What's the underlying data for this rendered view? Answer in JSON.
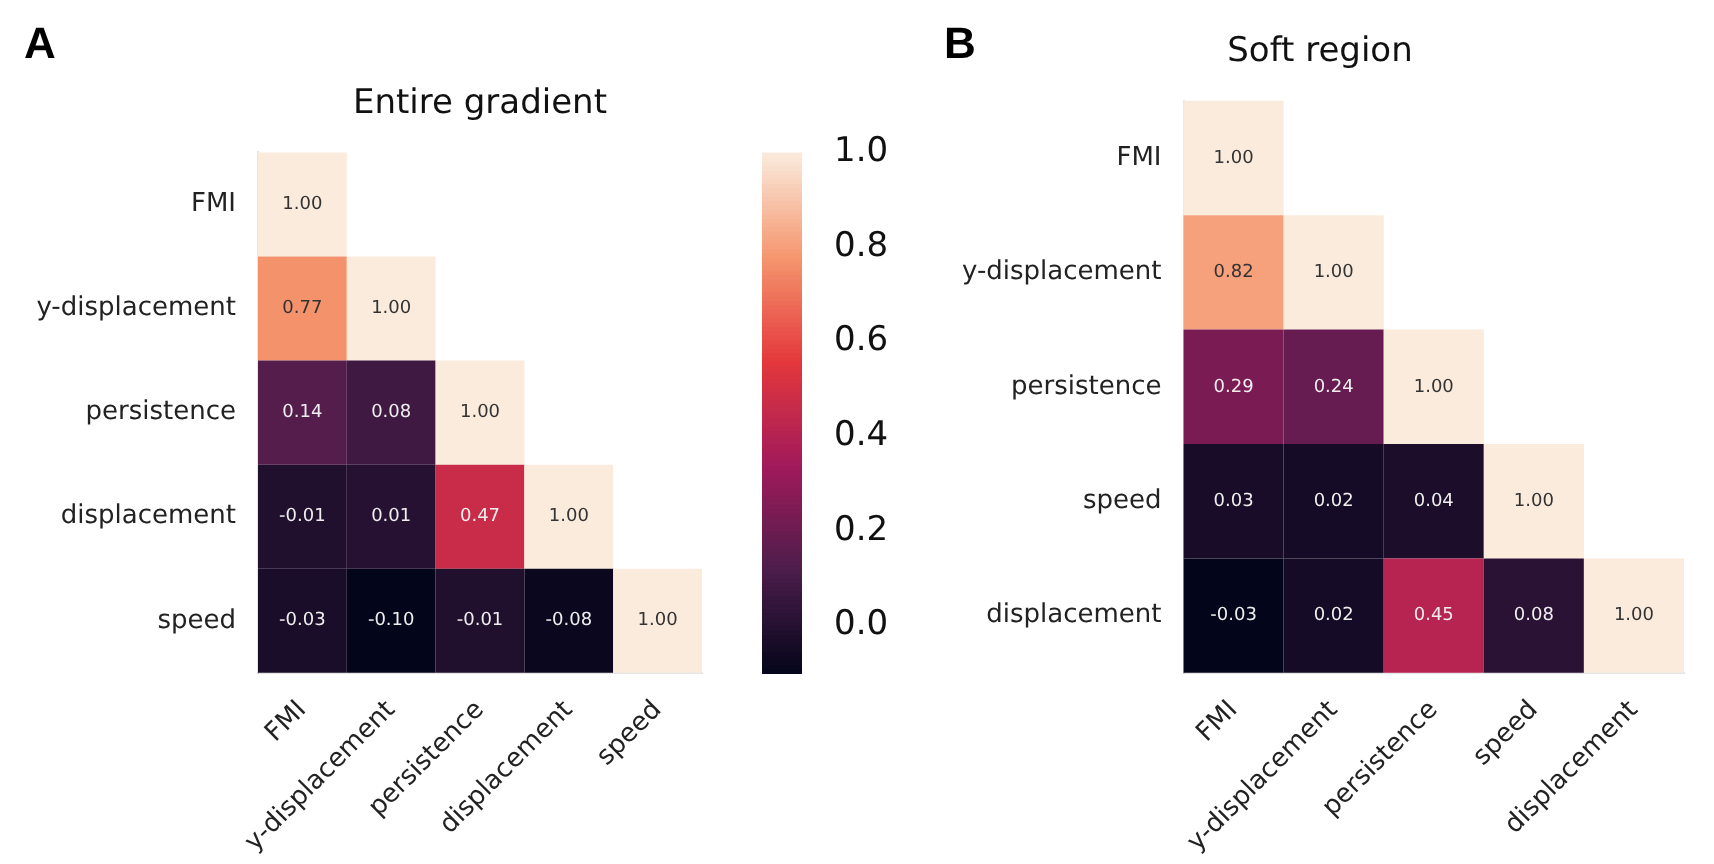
{
  "chart_data": [
    {
      "type": "heatmap",
      "title": "Entire gradient",
      "annotations": [
        "A"
      ],
      "categories": [
        "FMI",
        "y-displacement",
        "persistence",
        "displacement",
        "speed"
      ],
      "y_categories": [
        "FMI",
        "y-displacement",
        "persistence",
        "displacement",
        "speed"
      ],
      "cells": [
        [
          1.0,
          null,
          null,
          null,
          null
        ],
        [
          0.77,
          1.0,
          null,
          null,
          null
        ],
        [
          0.14,
          0.08,
          1.0,
          null,
          null
        ],
        [
          -0.01,
          0.01,
          0.47,
          1.0,
          null
        ],
        [
          -0.03,
          -0.1,
          -0.01,
          -0.08,
          1.0
        ]
      ],
      "cell_labels": [
        [
          "1.00",
          null,
          null,
          null,
          null
        ],
        [
          "0.77",
          "1.00",
          null,
          null,
          null
        ],
        [
          "0.14",
          "0.08",
          "1.00",
          null,
          null
        ],
        [
          "-0.01",
          "0.01",
          "0.47",
          "1.00",
          null
        ],
        [
          "-0.03",
          "-0.10",
          "-0.01",
          "-0.08",
          "1.00"
        ]
      ],
      "clim": [
        -0.1,
        1.0
      ],
      "cticks": [
        {
          "value": 0,
          "label": "0.0"
        },
        {
          "value": 0.2,
          "label": "0.2"
        },
        {
          "value": 0.4,
          "label": "0.4"
        },
        {
          "value": 0.6,
          "label": "0.6"
        },
        {
          "value": 0.8,
          "label": "0.8"
        },
        {
          "value": 1.0,
          "label": "1.0"
        }
      ]
    },
    {
      "type": "heatmap",
      "title": "Soft region",
      "annotations": [
        "B"
      ],
      "categories": [
        "FMI",
        "y-displacement",
        "persistence",
        "speed",
        "displacement"
      ],
      "y_categories": [
        "FMI",
        "y-displacement",
        "persistence",
        "speed",
        "displacement"
      ],
      "cells": [
        [
          1.0,
          null,
          null,
          null,
          null
        ],
        [
          0.82,
          1.0,
          null,
          null,
          null
        ],
        [
          0.29,
          0.24,
          1.0,
          null,
          null
        ],
        [
          0.03,
          0.02,
          0.04,
          1.0,
          null
        ],
        [
          -0.03,
          0.02,
          0.45,
          0.08,
          1.0
        ]
      ],
      "cell_labels": [
        [
          "1.00",
          null,
          null,
          null,
          null
        ],
        [
          "0.82",
          "1.00",
          null,
          null,
          null
        ],
        [
          "0.29",
          "0.24",
          "1.00",
          null,
          null
        ],
        [
          "0.03",
          "0.02",
          "0.04",
          "1.00",
          null
        ],
        [
          "-0.03",
          "0.02",
          "0.45",
          "0.08",
          "1.00"
        ]
      ]
    }
  ]
}
